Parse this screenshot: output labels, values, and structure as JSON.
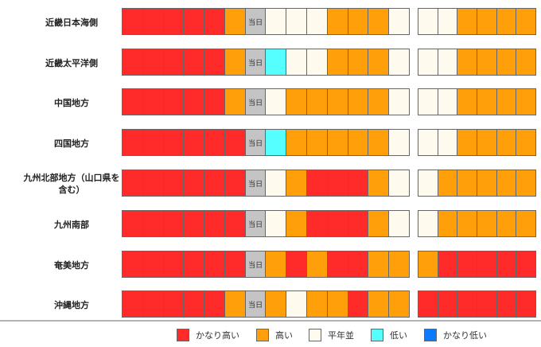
{
  "today_label": "当日",
  "colors": {
    "very_high": "#ff2a2a",
    "high": "#ffa00a",
    "normal": "#fefbee",
    "low": "#55ffff",
    "very_low": "#0a7bff",
    "today": "#c4c4c4"
  },
  "rows": [
    {
      "region": "近畿日本海側",
      "week1": [
        "very_high",
        "very_high",
        "very_high",
        "very_high",
        "very_high",
        "high",
        "today",
        "normal",
        "normal",
        "normal",
        "high",
        "high",
        "high",
        "normal"
      ],
      "week2": [
        "normal",
        "normal",
        "high",
        "high",
        "high",
        "high"
      ]
    },
    {
      "region": "近畿太平洋側",
      "week1": [
        "very_high",
        "very_high",
        "very_high",
        "very_high",
        "very_high",
        "high",
        "today",
        "low",
        "normal",
        "normal",
        "high",
        "high",
        "high",
        "normal"
      ],
      "week2": [
        "normal",
        "normal",
        "high",
        "high",
        "high",
        "high"
      ]
    },
    {
      "region": "中国地方",
      "week1": [
        "very_high",
        "very_high",
        "very_high",
        "very_high",
        "very_high",
        "high",
        "today",
        "normal",
        "high",
        "high",
        "high",
        "high",
        "high",
        "normal"
      ],
      "week2": [
        "normal",
        "normal",
        "high",
        "high",
        "high",
        "high"
      ]
    },
    {
      "region": "四国地方",
      "week1": [
        "very_high",
        "very_high",
        "very_high",
        "very_high",
        "very_high",
        "very_high",
        "today",
        "low",
        "high",
        "high",
        "high",
        "high",
        "high",
        "normal"
      ],
      "week2": [
        "normal",
        "normal",
        "high",
        "high",
        "high",
        "high"
      ]
    },
    {
      "region": "九州北部地方（山口県を含む）",
      "week1": [
        "very_high",
        "very_high",
        "very_high",
        "very_high",
        "very_high",
        "very_high",
        "today",
        "normal",
        "high",
        "very_high",
        "very_high",
        "very_high",
        "high",
        "normal"
      ],
      "week2": [
        "normal",
        "high",
        "high",
        "high",
        "high",
        "high"
      ]
    },
    {
      "region": "九州南部",
      "week1": [
        "very_high",
        "very_high",
        "very_high",
        "very_high",
        "very_high",
        "very_high",
        "today",
        "normal",
        "high",
        "very_high",
        "very_high",
        "very_high",
        "high",
        "normal"
      ],
      "week2": [
        "normal",
        "high",
        "high",
        "high",
        "high",
        "high"
      ]
    },
    {
      "region": "奄美地方",
      "week1": [
        "very_high",
        "very_high",
        "very_high",
        "very_high",
        "very_high",
        "very_high",
        "today",
        "high",
        "very_high",
        "high",
        "very_high",
        "very_high",
        "high",
        "high"
      ],
      "week2": [
        "high",
        "very_high",
        "very_high",
        "very_high",
        "very_high",
        "very_high"
      ]
    },
    {
      "region": "沖縄地方",
      "week1": [
        "very_high",
        "very_high",
        "very_high",
        "very_high",
        "very_high",
        "high",
        "today",
        "high",
        "normal",
        "high",
        "high",
        "very_high",
        "high",
        "high"
      ],
      "week2": [
        "very_high",
        "very_high",
        "very_high",
        "very_high",
        "very_high",
        "very_high"
      ]
    }
  ],
  "legend": [
    {
      "key": "very_high",
      "label": "かなり高い"
    },
    {
      "key": "high",
      "label": "高い"
    },
    {
      "key": "normal",
      "label": "平年並"
    },
    {
      "key": "low",
      "label": "低い"
    },
    {
      "key": "very_low",
      "label": "かなり低い"
    }
  ]
}
